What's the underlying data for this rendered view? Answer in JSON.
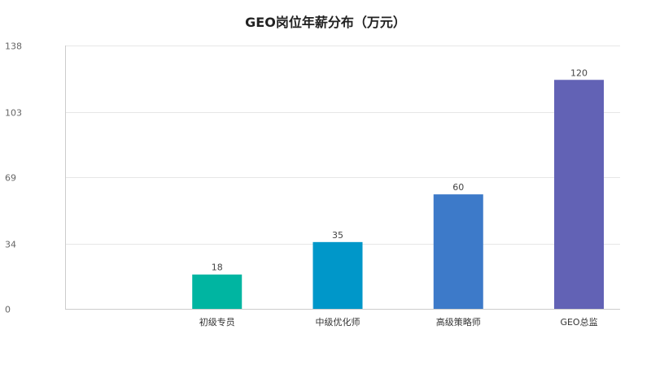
{
  "chart_data": {
    "type": "bar",
    "title": "GEO岗位年薪分布（万元）",
    "categories": [
      "初级专员",
      "中级优化师",
      "高级策略师",
      "GEO总监"
    ],
    "values": [
      18,
      35,
      60,
      120
    ],
    "data_labels": [
      "18",
      "35",
      "60",
      "120"
    ],
    "colors": [
      "#00b5a1",
      "#0097c9",
      "#3d7ac9",
      "#6262b5"
    ],
    "yticks": [
      0,
      34,
      69,
      103,
      138
    ],
    "ytick_labels": [
      "0",
      "34",
      "69",
      "103",
      "138"
    ],
    "ylim": [
      0,
      138
    ],
    "xlabel": "",
    "ylabel": "",
    "grid": true,
    "legend": "none"
  }
}
